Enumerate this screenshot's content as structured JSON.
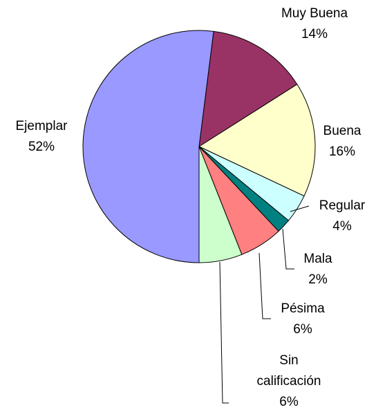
{
  "chart_data": {
    "type": "pie",
    "categories": [
      "Muy Buena",
      "Buena",
      "Regular",
      "Mala",
      "Pésima",
      "Sin calificación",
      "Ejemplar"
    ],
    "values": [
      14,
      16,
      4,
      2,
      6,
      6,
      52
    ],
    "value_labels": [
      "14%",
      "16%",
      "4%",
      "2%",
      "6%",
      "6%",
      "52%"
    ],
    "colors": [
      "#993366",
      "#ffffcc",
      "#ccffff",
      "#008080",
      "#ff8080",
      "#ccffcc",
      "#9999ff"
    ]
  }
}
